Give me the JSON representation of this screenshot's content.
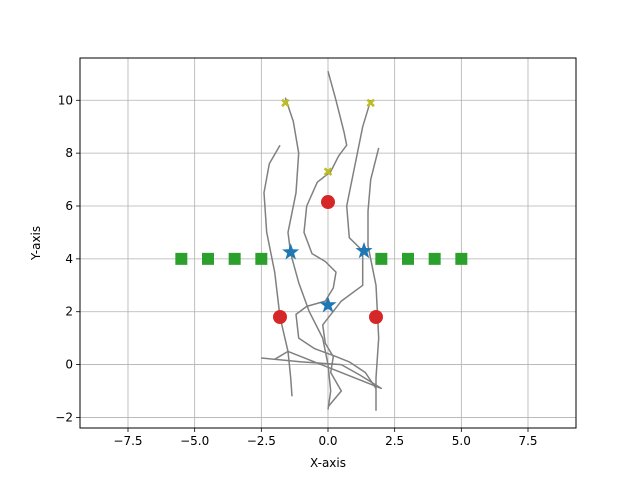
{
  "chart_data": {
    "type": "scatter",
    "title": "",
    "xlabel": "X-axis",
    "ylabel": "Y-axis",
    "xlim": [
      -9.3,
      9.3
    ],
    "ylim": [
      -2.4,
      11.6
    ],
    "xticks": [
      -7.5,
      -5.0,
      -2.5,
      0.0,
      2.5,
      5.0,
      7.5
    ],
    "xtick_labels": [
      "−7.5",
      "−5.0",
      "−2.5",
      "0.0",
      "2.5",
      "5.0",
      "7.5"
    ],
    "yticks": [
      -2,
      0,
      2,
      4,
      6,
      8,
      10
    ],
    "ytick_labels": [
      "−2",
      "0",
      "2",
      "4",
      "6",
      "8",
      "10"
    ],
    "grid": true,
    "legend": "none",
    "colors": {
      "trajectory": "#808080",
      "squares": "#2ca02c",
      "circles": "#d62728",
      "stars": "#1f77b4",
      "crosses": "#bcbd22",
      "grid": "#b0b0b0"
    },
    "series": [
      {
        "marker": "square",
        "color": "#2ca02c",
        "x": [
          -5.5,
          -4.5,
          -3.5,
          -2.5,
          2.0,
          3.0,
          4.0,
          5.0
        ],
        "y": [
          4.0,
          4.0,
          4.0,
          4.0,
          4.0,
          4.0,
          4.0,
          4.0
        ]
      },
      {
        "marker": "circle",
        "color": "#d62728",
        "x": [
          -1.8,
          0.0,
          1.8
        ],
        "y": [
          1.8,
          6.15,
          1.8
        ]
      },
      {
        "marker": "star",
        "color": "#1f77b4",
        "x": [
          -1.4,
          0.0,
          1.35
        ],
        "y": [
          4.25,
          2.25,
          4.3
        ]
      },
      {
        "marker": "x",
        "color": "#bcbd22",
        "x": [
          -1.6,
          0.0,
          1.6
        ],
        "y": [
          9.9,
          7.3,
          9.9
        ]
      }
    ],
    "trajectories": [
      [
        [
          0.0,
          11.1
        ],
        [
          0.3,
          10.0
        ],
        [
          0.6,
          8.8
        ],
        [
          0.7,
          8.3
        ],
        [
          0.4,
          7.9
        ],
        [
          0.1,
          7.3
        ],
        [
          -0.4,
          6.9
        ],
        [
          -0.8,
          6.0
        ],
        [
          -0.9,
          5.0
        ],
        [
          -0.6,
          4.2
        ],
        [
          -0.1,
          3.9
        ],
        [
          0.3,
          3.5
        ],
        [
          0.2,
          2.9
        ],
        [
          -0.1,
          2.4
        ],
        [
          -0.8,
          2.2
        ],
        [
          -1.2,
          1.9
        ],
        [
          -1.1,
          1.0
        ],
        [
          -0.5,
          0.6
        ],
        [
          0.3,
          0.3
        ],
        [
          0.8,
          0.1
        ],
        [
          1.4,
          -0.3
        ],
        [
          1.8,
          -0.9
        ]
      ],
      [
        [
          -1.6,
          10.1
        ],
        [
          -1.3,
          9.2
        ],
        [
          -1.1,
          8.0
        ],
        [
          -1.2,
          6.5
        ],
        [
          -1.5,
          5.0
        ],
        [
          -1.4,
          4.2
        ],
        [
          -1.1,
          3.1
        ],
        [
          -0.7,
          2.0
        ],
        [
          -0.2,
          1.0
        ],
        [
          0.0,
          0.0
        ],
        [
          0.1,
          -1.0
        ],
        [
          0.0,
          -1.7
        ]
      ],
      [
        [
          -1.8,
          8.3
        ],
        [
          -2.2,
          7.6
        ],
        [
          -2.4,
          6.5
        ],
        [
          -2.3,
          5.0
        ],
        [
          -2.0,
          3.5
        ],
        [
          -1.8,
          1.8
        ],
        [
          -1.5,
          0.5
        ],
        [
          -1.4,
          -0.5
        ],
        [
          -1.35,
          -1.2
        ]
      ],
      [
        [
          1.6,
          10.0
        ],
        [
          1.3,
          9.0
        ],
        [
          1.0,
          7.5
        ],
        [
          0.7,
          6.0
        ],
        [
          0.8,
          4.8
        ],
        [
          1.3,
          4.3
        ],
        [
          1.3,
          3.0
        ],
        [
          0.5,
          2.4
        ],
        [
          -0.2,
          1.5
        ],
        [
          -0.1,
          0.8
        ],
        [
          0.2,
          0.3
        ],
        [
          0.1,
          -0.3
        ],
        [
          0.5,
          -1.0
        ],
        [
          0.0,
          -1.6
        ]
      ],
      [
        [
          1.9,
          8.2
        ],
        [
          1.6,
          7.0
        ],
        [
          1.5,
          5.8
        ],
        [
          1.5,
          4.5
        ],
        [
          1.8,
          3.0
        ],
        [
          1.9,
          1.0
        ],
        [
          1.8,
          -0.5
        ],
        [
          1.8,
          -1.75
        ]
      ],
      [
        [
          -2.5,
          0.25
        ],
        [
          -1.0,
          0.1
        ],
        [
          0.5,
          0.0
        ],
        [
          1.2,
          -0.4
        ],
        [
          2.0,
          -0.9
        ],
        [
          -1.5,
          0.5
        ],
        [
          -2.0,
          0.2
        ]
      ]
    ]
  }
}
